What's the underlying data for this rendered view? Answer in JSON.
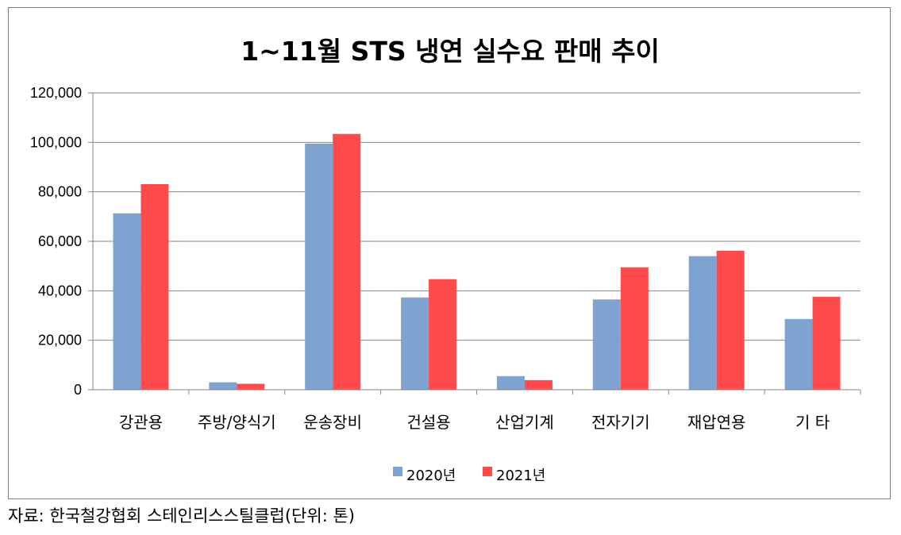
{
  "chart_data": {
    "type": "bar",
    "title": "1~11월 STS 냉연 실수요 판매 추이",
    "categories": [
      "강관용",
      "주방/양식기",
      "운송장비",
      "건설용",
      "산업기계",
      "전자기기",
      "재압연용",
      "기 타"
    ],
    "series": [
      {
        "name": "2020년",
        "color": "#7fa3d1",
        "values": [
          71300,
          3000,
          99500,
          37300,
          5500,
          36500,
          54000,
          28600
        ]
      },
      {
        "name": "2021년",
        "color": "#ff4b4b",
        "values": [
          83100,
          2400,
          103400,
          44700,
          3900,
          49500,
          56200,
          37600
        ]
      }
    ],
    "y_ticks": [
      "0",
      "20,000",
      "40,000",
      "60,000",
      "80,000",
      "100,000",
      "120,000"
    ],
    "ylim": [
      0,
      120000
    ],
    "ystep": 20000,
    "grid": true,
    "legend_position": "bottom"
  },
  "source_note": "자료: 한국철강협회 스테인리스스틸클럽(단위: 톤)"
}
